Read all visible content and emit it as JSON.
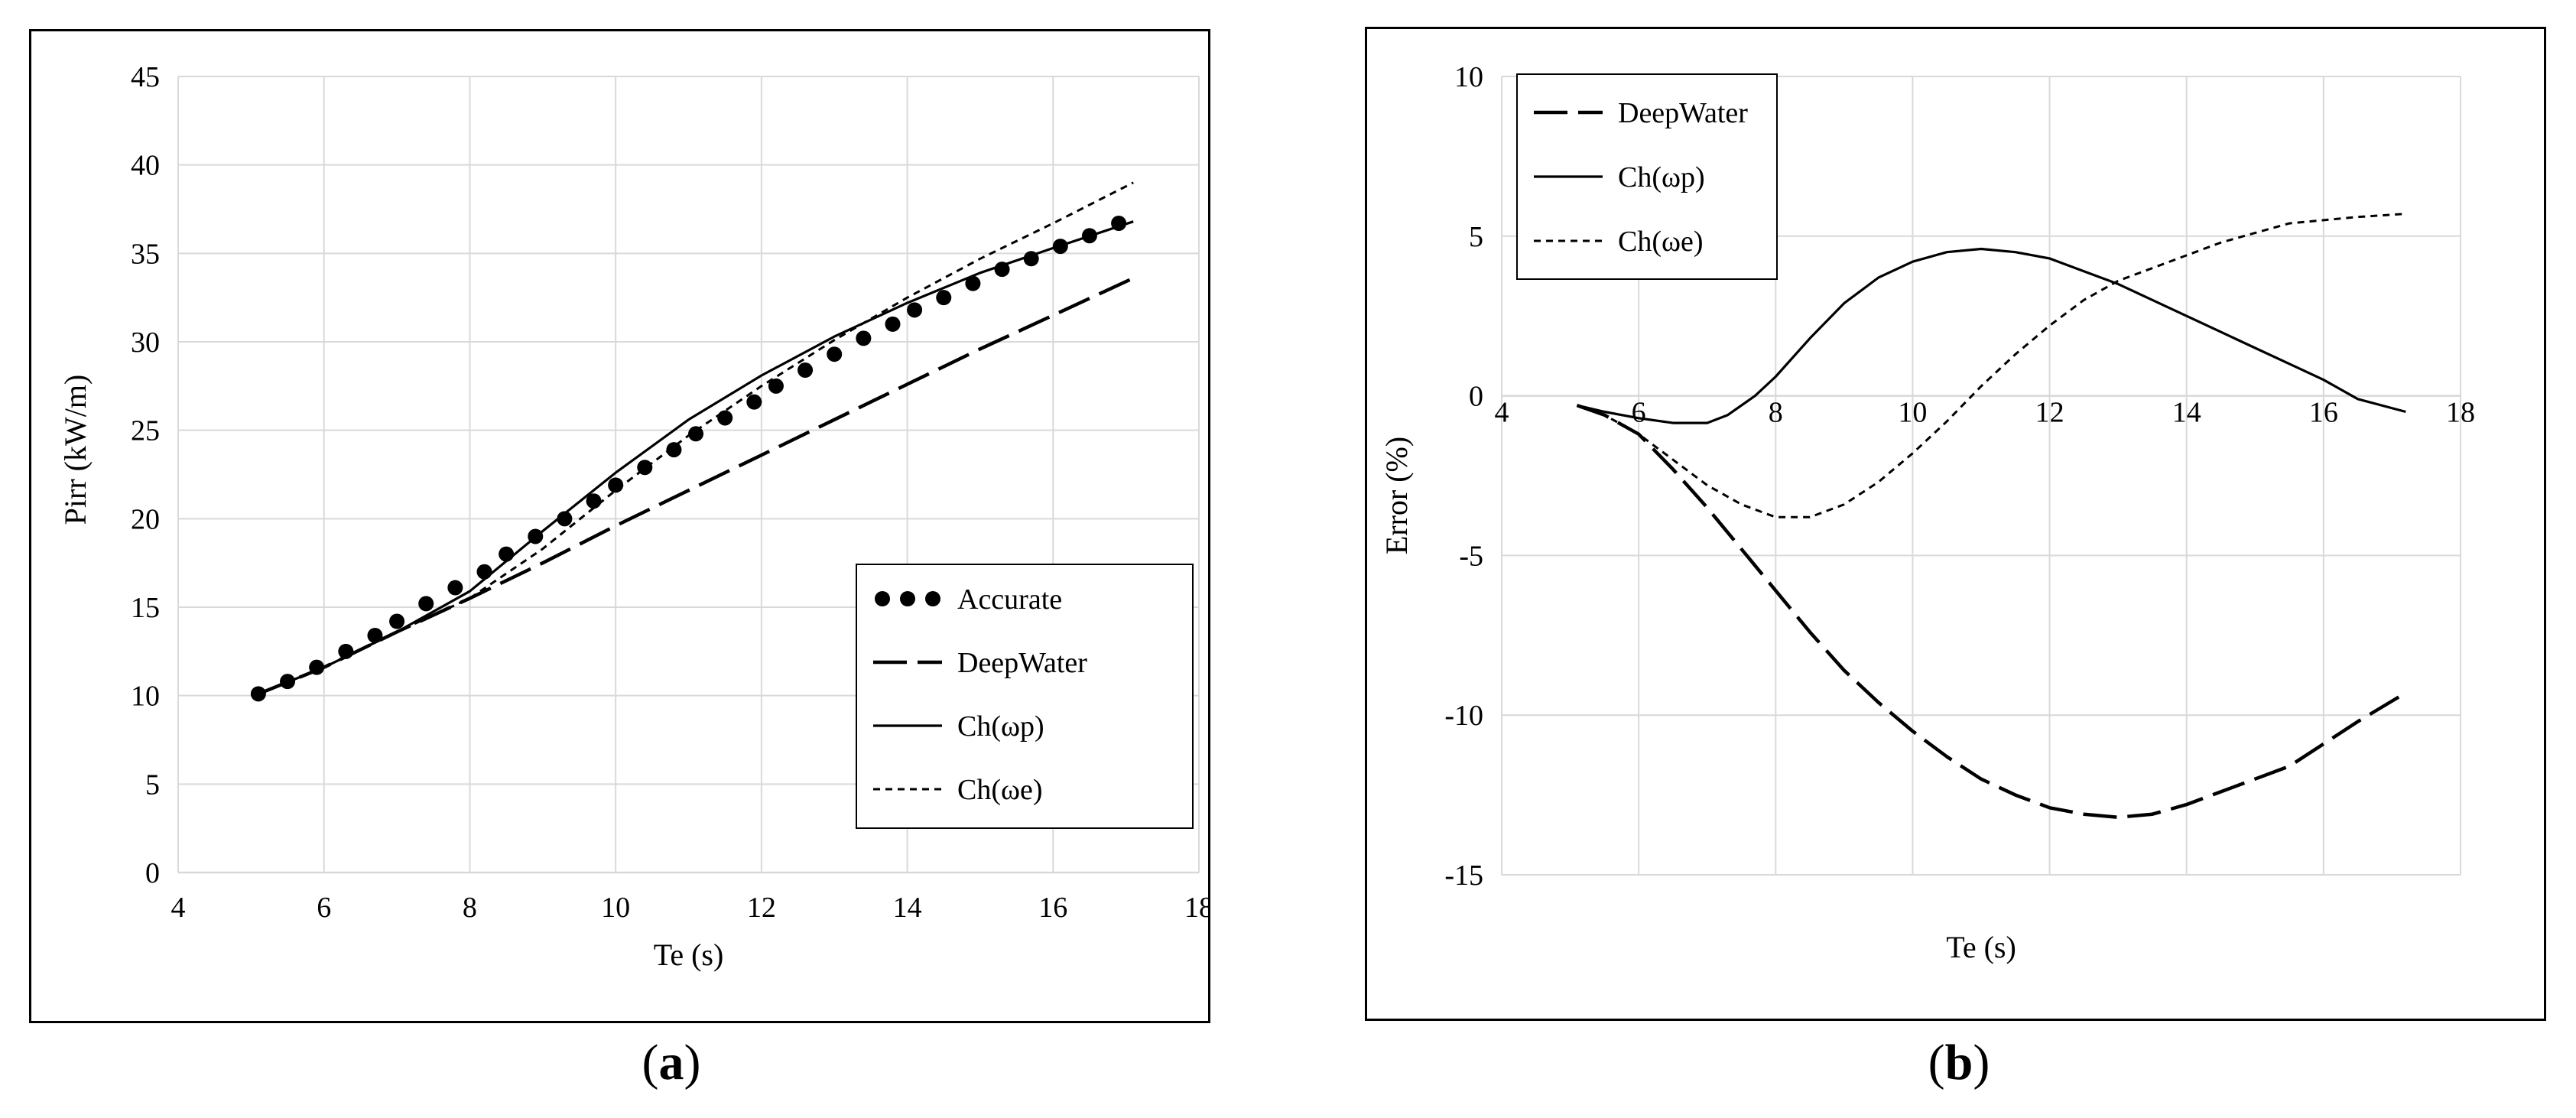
{
  "captions": {
    "a": "a",
    "b": "b"
  },
  "chart_data": [
    {
      "id": "a",
      "type": "line",
      "title": "",
      "xlabel": "Te (s)",
      "ylabel": "Pirr (kW/m)",
      "xlim": [
        4,
        18
      ],
      "ylim": [
        0,
        45
      ],
      "xticks": [
        4,
        6,
        8,
        10,
        12,
        14,
        16,
        18
      ],
      "yticks": [
        0,
        5,
        10,
        15,
        20,
        25,
        30,
        35,
        40,
        45
      ],
      "grid": true,
      "legend_position": "bottom-right",
      "series": [
        {
          "name": "Accurate",
          "style": "dots",
          "x": [
            5.1,
            5.5,
            5.9,
            6.3,
            6.7,
            7.0,
            7.4,
            7.8,
            8.2,
            8.5,
            8.9,
            9.3,
            9.7,
            10.0,
            10.4,
            10.8,
            11.1,
            11.5,
            11.9,
            12.2,
            12.6,
            13.0,
            13.4,
            13.8,
            14.1,
            14.5,
            14.9,
            15.3,
            15.7,
            16.1,
            16.5,
            16.9
          ],
          "y": [
            10.1,
            10.8,
            11.6,
            12.5,
            13.4,
            14.2,
            15.2,
            16.1,
            17.0,
            18.0,
            19.0,
            20.0,
            21.0,
            21.9,
            22.9,
            23.9,
            24.8,
            25.7,
            26.6,
            27.5,
            28.4,
            29.3,
            30.2,
            31.0,
            31.8,
            32.5,
            33.3,
            34.1,
            34.7,
            35.4,
            36.0,
            36.7
          ]
        },
        {
          "name": "DeepWater",
          "style": "long-dash",
          "x": [
            5.1,
            6,
            7,
            8,
            9,
            10,
            11,
            12,
            13,
            14,
            15,
            16,
            17.1
          ],
          "y": [
            10.1,
            11.6,
            13.6,
            15.5,
            17.5,
            19.6,
            21.6,
            23.6,
            25.6,
            27.6,
            29.6,
            31.5,
            33.6
          ]
        },
        {
          "name": "Ch(ωp)",
          "style": "solid",
          "x": [
            5.1,
            6,
            7,
            8,
            9,
            10,
            11,
            12,
            13,
            14,
            15,
            16,
            17.1
          ],
          "y": [
            10.1,
            11.6,
            13.6,
            15.9,
            19.3,
            22.6,
            25.6,
            28.1,
            30.3,
            32.2,
            33.9,
            35.3,
            36.8
          ]
        },
        {
          "name": "Ch(ωe)",
          "style": "short-dash",
          "x": [
            5.1,
            6,
            7,
            8,
            9,
            10,
            11,
            12,
            13,
            14,
            15,
            16,
            17.1
          ],
          "y": [
            10.1,
            11.6,
            13.6,
            15.5,
            18.3,
            21.6,
            24.7,
            27.5,
            30.1,
            32.5,
            34.7,
            36.7,
            39.0
          ]
        }
      ]
    },
    {
      "id": "b",
      "type": "line",
      "title": "",
      "xlabel": "Te (s)",
      "ylabel": "Error (%)",
      "xlim": [
        4,
        18
      ],
      "ylim": [
        -15,
        10
      ],
      "xticks": [
        4,
        6,
        8,
        10,
        12,
        14,
        16,
        18
      ],
      "yticks": [
        -15,
        -10,
        -5,
        0,
        5,
        10
      ],
      "grid": true,
      "legend_position": "top-left",
      "series": [
        {
          "name": "DeepWater",
          "style": "long-dash",
          "x": [
            5.1,
            5.5,
            6.0,
            6.5,
            7.0,
            7.5,
            8.0,
            8.5,
            9.0,
            9.5,
            10.0,
            10.5,
            11.0,
            11.5,
            12.0,
            12.5,
            13.0,
            13.5,
            14.0,
            14.5,
            15.0,
            15.5,
            16.0,
            16.5,
            17.2
          ],
          "y": [
            -0.3,
            -0.6,
            -1.2,
            -2.3,
            -3.5,
            -4.8,
            -6.1,
            -7.4,
            -8.6,
            -9.6,
            -10.5,
            -11.3,
            -12.0,
            -12.5,
            -12.9,
            -13.1,
            -13.2,
            -13.1,
            -12.8,
            -12.4,
            -12.0,
            -11.6,
            -10.9,
            -10.2,
            -9.3
          ]
        },
        {
          "name": "Ch(ωp)",
          "style": "solid",
          "x": [
            5.1,
            5.5,
            6.0,
            6.5,
            7.0,
            7.3,
            7.7,
            8.0,
            8.5,
            9.0,
            9.5,
            10.0,
            10.5,
            11.0,
            11.5,
            12.0,
            12.5,
            13.0,
            13.5,
            14.0,
            14.5,
            15.0,
            15.5,
            16.0,
            16.5,
            17.2
          ],
          "y": [
            -0.3,
            -0.5,
            -0.7,
            -0.85,
            -0.85,
            -0.6,
            0.0,
            0.6,
            1.8,
            2.9,
            3.7,
            4.2,
            4.5,
            4.6,
            4.5,
            4.3,
            3.9,
            3.5,
            3.0,
            2.5,
            2.0,
            1.5,
            1.0,
            0.5,
            -0.1,
            -0.5
          ]
        },
        {
          "name": "Ch(ωe)",
          "style": "short-dash",
          "x": [
            5.1,
            5.5,
            6.0,
            6.5,
            7.0,
            7.5,
            8.0,
            8.5,
            9.0,
            9.5,
            10.0,
            10.5,
            11.0,
            11.5,
            12.0,
            12.5,
            13.0,
            13.5,
            14.0,
            14.5,
            15.0,
            15.5,
            16.0,
            16.5,
            17.2
          ],
          "y": [
            -0.3,
            -0.6,
            -1.2,
            -2.0,
            -2.8,
            -3.4,
            -3.8,
            -3.8,
            -3.4,
            -2.7,
            -1.8,
            -0.8,
            0.3,
            1.3,
            2.2,
            3.0,
            3.6,
            4.0,
            4.4,
            4.8,
            5.1,
            5.4,
            5.5,
            5.6,
            5.7
          ]
        }
      ]
    }
  ]
}
